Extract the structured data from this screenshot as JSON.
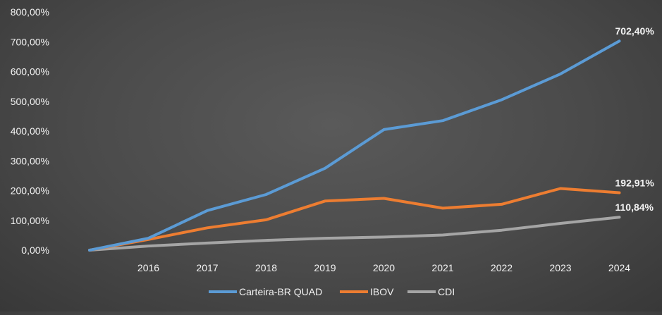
{
  "chart_data": {
    "type": "line",
    "title": "",
    "xlabel": "",
    "ylabel": "",
    "x": [
      "",
      "2016",
      "2017",
      "2018",
      "2019",
      "2020",
      "2021",
      "2022",
      "2023",
      "2024"
    ],
    "ylim": [
      0,
      800
    ],
    "yticks": [
      {
        "value": 0,
        "label": "0,00%"
      },
      {
        "value": 100,
        "label": "100,00%"
      },
      {
        "value": 200,
        "label": "200,00%"
      },
      {
        "value": 300,
        "label": "300,00%"
      },
      {
        "value": 400,
        "label": "400,00%"
      },
      {
        "value": 500,
        "label": "500,00%"
      },
      {
        "value": 600,
        "label": "600,00%"
      },
      {
        "value": 700,
        "label": "700,00%"
      },
      {
        "value": 800,
        "label": "800,00%"
      }
    ],
    "grid": false,
    "legend_position": "bottom",
    "series": [
      {
        "name": "Carteira-BR QUAD",
        "color": "#5b9bd5",
        "values": [
          0,
          40,
          133,
          187,
          275,
          405,
          435,
          505,
          592,
          702.4
        ],
        "end_label": "702,40%"
      },
      {
        "name": "IBOV",
        "color": "#ed7d31",
        "values": [
          0,
          36,
          75,
          102,
          165,
          174,
          141,
          154,
          207,
          192.91
        ],
        "end_label": "192,91%"
      },
      {
        "name": "CDI",
        "color": "#a5a5a5",
        "values": [
          0,
          14,
          24,
          33,
          40,
          44,
          51,
          67,
          90,
          110.84
        ],
        "end_label": "110,84%"
      }
    ]
  }
}
